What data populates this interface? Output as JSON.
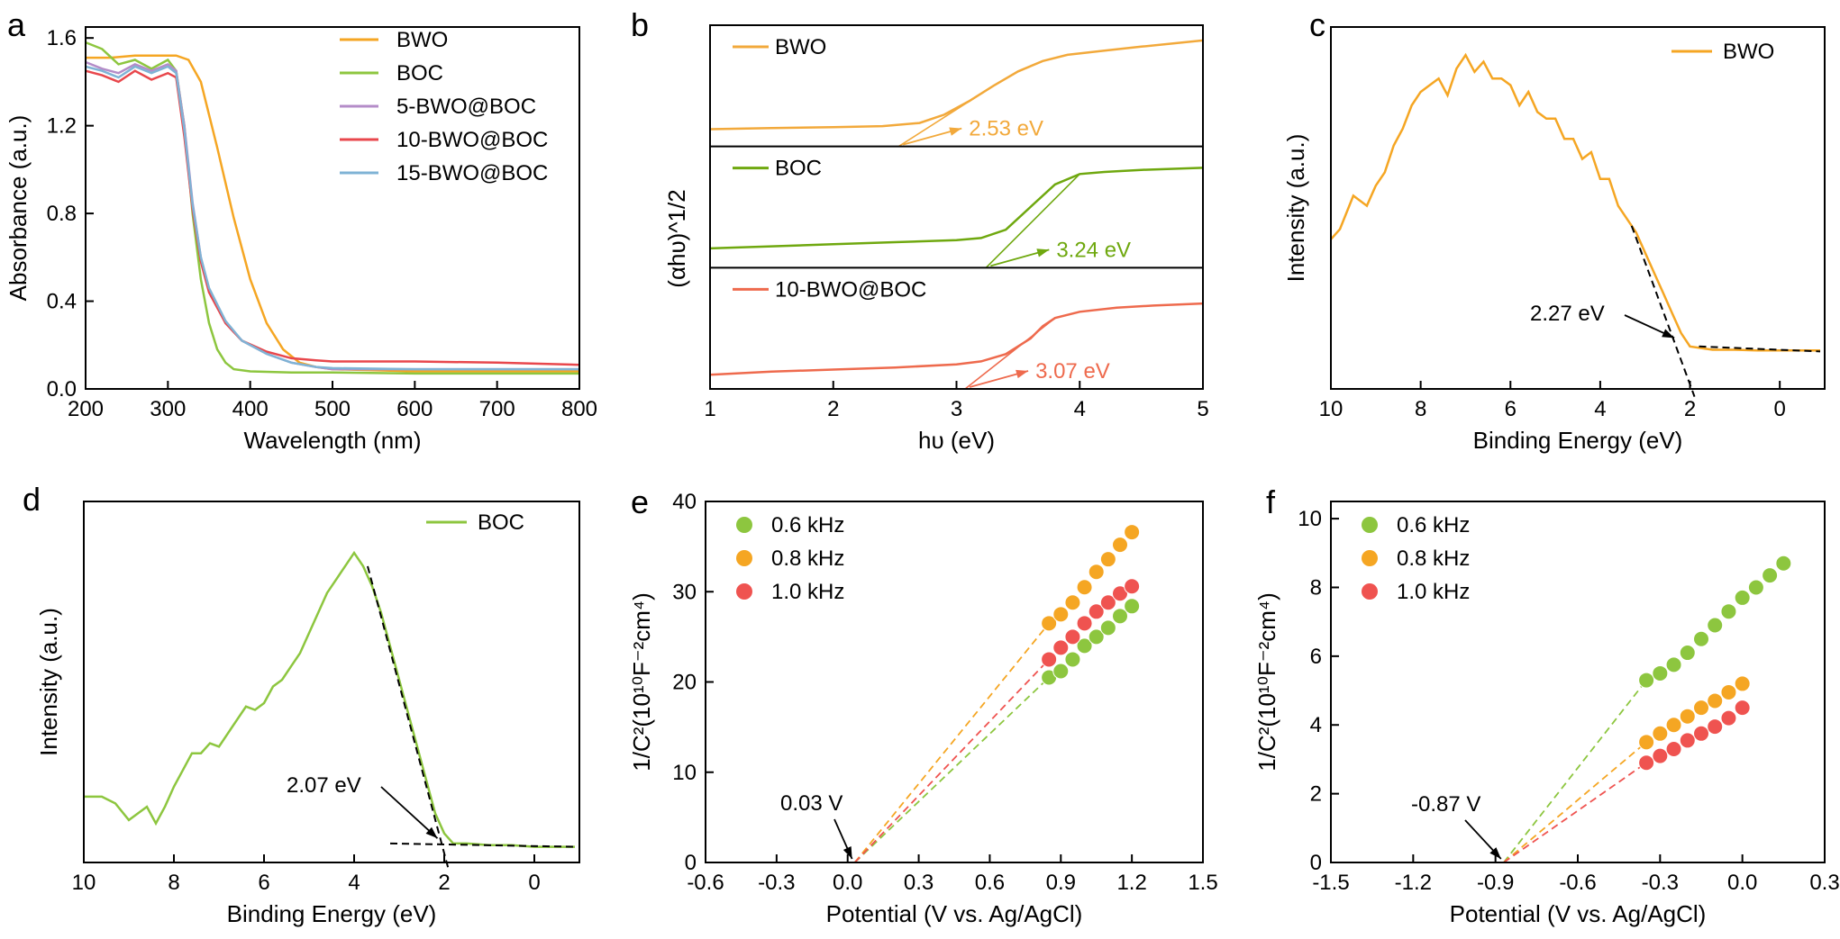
{
  "colors": {
    "BWO": "#F5A623",
    "BOC": "#8DC63F",
    "5-BWO@BOC": "#B48CC8",
    "10-BWO@BOC": "#E8474C",
    "15-BWO@BOC": "#7FB3D5",
    "BOC_tauc": "#6FA80F",
    "BWO_tauc": "#F2A93B",
    "BWOBOC_tauc": "#EE6A4D",
    "m06": "#8DC63F",
    "m08": "#F5A623",
    "m10": "#EF5350"
  },
  "chart_data": [
    {
      "panel": "a",
      "type": "line",
      "xlabel": "Wavelength (nm)",
      "ylabel": "Absorbance (a.u.)",
      "xlim": [
        200,
        800
      ],
      "ylim": [
        0,
        1.65
      ],
      "xticks": [
        "200",
        "300",
        "400",
        "500",
        "600",
        "700",
        "800"
      ],
      "yticks": [
        "0.0",
        "0.4",
        "0.8",
        "1.2",
        "1.6"
      ],
      "legend_position": "top-right",
      "series": [
        {
          "name": "BWO",
          "color_key": "BWO",
          "x": [
            200,
            230,
            260,
            290,
            310,
            325,
            340,
            360,
            380,
            400,
            420,
            440,
            460,
            480,
            500,
            550,
            600,
            700,
            800
          ],
          "y": [
            1.51,
            1.51,
            1.52,
            1.52,
            1.52,
            1.5,
            1.4,
            1.1,
            0.78,
            0.5,
            0.3,
            0.18,
            0.12,
            0.1,
            0.09,
            0.085,
            0.08,
            0.08,
            0.08
          ]
        },
        {
          "name": "BOC",
          "color_key": "BOC",
          "x": [
            200,
            220,
            240,
            260,
            280,
            300,
            310,
            320,
            330,
            340,
            350,
            360,
            370,
            380,
            400,
            450,
            500,
            600,
            700,
            800
          ],
          "y": [
            1.58,
            1.55,
            1.48,
            1.5,
            1.46,
            1.5,
            1.45,
            1.2,
            0.8,
            0.5,
            0.3,
            0.18,
            0.12,
            0.09,
            0.08,
            0.075,
            0.075,
            0.07,
            0.07,
            0.07
          ]
        },
        {
          "name": "5-BWO@BOC",
          "color_key": "5-BWO@BOC",
          "x": [
            200,
            220,
            240,
            260,
            280,
            300,
            310,
            320,
            330,
            340,
            350,
            370,
            390,
            420,
            450,
            480,
            500,
            600,
            700,
            800
          ],
          "y": [
            1.49,
            1.46,
            1.44,
            1.48,
            1.45,
            1.48,
            1.45,
            1.2,
            0.85,
            0.6,
            0.45,
            0.3,
            0.22,
            0.16,
            0.12,
            0.1,
            0.09,
            0.09,
            0.09,
            0.09
          ]
        },
        {
          "name": "10-BWO@BOC",
          "color_key": "10-BWO@BOC",
          "x": [
            200,
            220,
            240,
            260,
            280,
            300,
            310,
            320,
            330,
            340,
            350,
            370,
            390,
            420,
            450,
            480,
            500,
            600,
            700,
            800
          ],
          "y": [
            1.45,
            1.43,
            1.4,
            1.45,
            1.41,
            1.44,
            1.42,
            1.15,
            0.82,
            0.58,
            0.44,
            0.3,
            0.22,
            0.17,
            0.14,
            0.13,
            0.125,
            0.125,
            0.12,
            0.11
          ]
        },
        {
          "name": "15-BWO@BOC",
          "color_key": "15-BWO@BOC",
          "x": [
            200,
            220,
            240,
            260,
            280,
            300,
            310,
            320,
            330,
            340,
            350,
            370,
            390,
            420,
            450,
            480,
            500,
            600,
            700,
            800
          ],
          "y": [
            1.47,
            1.45,
            1.42,
            1.47,
            1.44,
            1.47,
            1.44,
            1.18,
            0.84,
            0.6,
            0.46,
            0.31,
            0.22,
            0.16,
            0.12,
            0.1,
            0.095,
            0.09,
            0.09,
            0.09
          ]
        }
      ]
    },
    {
      "panel": "b",
      "type": "line",
      "xlabel": "hυ (eV)",
      "ylabel": "(αhυ)^1/2",
      "xlim": [
        1,
        5
      ],
      "xticks": [
        "1",
        "2",
        "3",
        "4",
        "5"
      ],
      "subplots": [
        {
          "name": "BWO",
          "color_key": "BWO_tauc",
          "annotation": "2.53 eV",
          "x": [
            1,
            1.5,
            2,
            2.4,
            2.7,
            2.9,
            3.1,
            3.3,
            3.5,
            3.7,
            3.9,
            4.2,
            4.5,
            5
          ],
          "y": [
            0.08,
            0.09,
            0.1,
            0.11,
            0.14,
            0.22,
            0.35,
            0.5,
            0.64,
            0.74,
            0.8,
            0.84,
            0.88,
            0.94
          ],
          "tangent_x": [
            2.53,
            3.3
          ]
        },
        {
          "name": "BOC",
          "color_key": "BOC_tauc",
          "annotation": "3.24 eV",
          "x": [
            1,
            1.5,
            2,
            2.5,
            3,
            3.2,
            3.4,
            3.6,
            3.8,
            4,
            4.2,
            4.5,
            5
          ],
          "y": [
            0.1,
            0.12,
            0.14,
            0.16,
            0.18,
            0.2,
            0.28,
            0.5,
            0.72,
            0.82,
            0.84,
            0.86,
            0.88
          ],
          "tangent_x": [
            3.24,
            3.9
          ]
        },
        {
          "name": "10-BWO@BOC",
          "color_key": "BWOBOC_tauc",
          "annotation": "3.07 eV",
          "x": [
            1,
            1.5,
            2,
            2.5,
            3,
            3.2,
            3.4,
            3.6,
            3.7,
            3.8,
            4,
            4.3,
            4.6,
            5
          ],
          "y": [
            0.05,
            0.08,
            0.1,
            0.12,
            0.15,
            0.18,
            0.25,
            0.4,
            0.52,
            0.6,
            0.66,
            0.7,
            0.72,
            0.74
          ],
          "tangent_x": [
            3.07,
            3.75
          ]
        }
      ]
    },
    {
      "panel": "c",
      "type": "line",
      "xlabel": "Binding Energy (eV)",
      "ylabel": "Intensity (a.u.)",
      "xlim": [
        10,
        -1
      ],
      "xticks": [
        "10",
        "8",
        "6",
        "4",
        "2",
        "0"
      ],
      "legend": [
        "BWO"
      ],
      "annotation": "2.27 eV",
      "series": [
        {
          "name": "BWO",
          "color_key": "BWO",
          "x": [
            10,
            9.8,
            9.5,
            9.2,
            9,
            8.8,
            8.6,
            8.4,
            8.2,
            8,
            7.8,
            7.6,
            7.4,
            7.2,
            7,
            6.8,
            6.6,
            6.4,
            6.2,
            6,
            5.8,
            5.6,
            5.4,
            5.2,
            5,
            4.8,
            4.6,
            4.4,
            4.2,
            4,
            3.8,
            3.6,
            3.4,
            3.2,
            3,
            2.8,
            2.6,
            2.4,
            2.2,
            2,
            1.5,
            1,
            0.5,
            0,
            -0.5,
            -0.9
          ],
          "y": [
            0.42,
            0.45,
            0.55,
            0.52,
            0.58,
            0.62,
            0.7,
            0.75,
            0.82,
            0.86,
            0.88,
            0.9,
            0.85,
            0.93,
            0.97,
            0.92,
            0.95,
            0.9,
            0.9,
            0.88,
            0.82,
            0.86,
            0.8,
            0.78,
            0.78,
            0.72,
            0.72,
            0.66,
            0.68,
            0.6,
            0.6,
            0.52,
            0.48,
            0.44,
            0.38,
            0.32,
            0.26,
            0.2,
            0.14,
            0.1,
            0.09,
            0.09,
            0.088,
            0.088,
            0.088,
            0.088
          ]
        }
      ]
    },
    {
      "panel": "d",
      "type": "line",
      "xlabel": "Binding Energy (eV)",
      "ylabel": "Intensity (a.u.)",
      "xlim": [
        10,
        -1
      ],
      "xticks": [
        "10",
        "8",
        "6",
        "4",
        "2",
        "0"
      ],
      "legend": [
        "BOC"
      ],
      "annotation": "2.07 eV",
      "series": [
        {
          "name": "BOC",
          "color_key": "BOC",
          "x": [
            10,
            9.6,
            9.3,
            9,
            8.8,
            8.6,
            8.4,
            8.2,
            8,
            7.8,
            7.6,
            7.4,
            7.2,
            7,
            6.8,
            6.6,
            6.4,
            6.2,
            6,
            5.8,
            5.6,
            5.4,
            5.2,
            5,
            4.8,
            4.6,
            4.4,
            4.2,
            4,
            3.8,
            3.6,
            3.4,
            3.2,
            3,
            2.8,
            2.6,
            2.4,
            2.2,
            2,
            1.8,
            1.5,
            1,
            0.5,
            0,
            -0.5,
            -0.9
          ],
          "y": [
            0.17,
            0.17,
            0.15,
            0.1,
            0.12,
            0.14,
            0.09,
            0.14,
            0.2,
            0.25,
            0.3,
            0.3,
            0.33,
            0.32,
            0.36,
            0.4,
            0.44,
            0.43,
            0.45,
            0.5,
            0.52,
            0.56,
            0.6,
            0.66,
            0.72,
            0.78,
            0.82,
            0.86,
            0.9,
            0.86,
            0.8,
            0.72,
            0.62,
            0.52,
            0.42,
            0.32,
            0.22,
            0.12,
            0.06,
            0.03,
            0.03,
            0.025,
            0.025,
            0.02,
            0.02,
            0.02
          ]
        }
      ]
    },
    {
      "panel": "e",
      "type": "scatter",
      "xlabel": "Potential (V vs. Ag/AgCl)",
      "ylabel": "1/C²(10¹⁰F⁻²cm⁴)",
      "xlim": [
        -0.6,
        1.5
      ],
      "ylim": [
        0,
        40
      ],
      "xticks": [
        "-0.6",
        "-0.3",
        "0.0",
        "0.3",
        "0.6",
        "0.9",
        "1.2",
        "1.5"
      ],
      "yticks": [
        "0",
        "10",
        "20",
        "30",
        "40"
      ],
      "legend_position": "top-left",
      "annotation": "0.03 V",
      "intercept": 0.03,
      "series": [
        {
          "name": "0.6 kHz",
          "color_key": "m06",
          "x": [
            0.85,
            0.9,
            0.95,
            1.0,
            1.05,
            1.1,
            1.15,
            1.2
          ],
          "y": [
            20.5,
            21.2,
            22.5,
            24.0,
            25.0,
            26.0,
            27.3,
            28.4
          ]
        },
        {
          "name": "0.8 kHz",
          "color_key": "m08",
          "x": [
            0.85,
            0.9,
            0.95,
            1.0,
            1.05,
            1.1,
            1.15,
            1.2
          ],
          "y": [
            26.5,
            27.5,
            28.8,
            30.5,
            32.2,
            33.6,
            35.2,
            36.6
          ]
        },
        {
          "name": "1.0 kHz",
          "color_key": "m10",
          "x": [
            0.85,
            0.9,
            0.95,
            1.0,
            1.05,
            1.1,
            1.15,
            1.2
          ],
          "y": [
            22.5,
            23.8,
            25.0,
            26.5,
            27.8,
            28.8,
            29.8,
            30.6
          ]
        }
      ]
    },
    {
      "panel": "f",
      "type": "scatter",
      "xlabel": "Potential (V vs. Ag/AgCl)",
      "ylabel": "1/C²(10¹⁰F⁻²cm⁴)",
      "xlim": [
        -1.5,
        0.3
      ],
      "ylim": [
        0,
        10.5
      ],
      "xticks": [
        "-1.5",
        "-1.2",
        "-0.9",
        "-0.6",
        "-0.3",
        "0.0",
        "0.3"
      ],
      "yticks": [
        "0",
        "2",
        "4",
        "6",
        "8",
        "10"
      ],
      "legend_position": "top-left",
      "annotation": "-0.87 V",
      "intercept": -0.87,
      "series": [
        {
          "name": "0.6 kHz",
          "color_key": "m06",
          "x": [
            -0.35,
            -0.3,
            -0.25,
            -0.2,
            -0.15,
            -0.1,
            -0.05,
            0.0,
            0.05,
            0.1,
            0.15
          ],
          "y": [
            5.3,
            5.5,
            5.75,
            6.1,
            6.5,
            6.9,
            7.3,
            7.7,
            8.0,
            8.35,
            8.7
          ]
        },
        {
          "name": "0.8 kHz",
          "color_key": "m08",
          "x": [
            -0.35,
            -0.3,
            -0.25,
            -0.2,
            -0.15,
            -0.1,
            -0.05,
            0.0
          ],
          "y": [
            3.5,
            3.75,
            4.0,
            4.25,
            4.5,
            4.7,
            4.95,
            5.2
          ]
        },
        {
          "name": "1.0 kHz",
          "color_key": "m10",
          "x": [
            -0.35,
            -0.3,
            -0.25,
            -0.2,
            -0.15,
            -0.1,
            -0.05,
            0.0
          ],
          "y": [
            2.9,
            3.1,
            3.3,
            3.55,
            3.75,
            3.95,
            4.2,
            4.5
          ]
        }
      ]
    }
  ]
}
